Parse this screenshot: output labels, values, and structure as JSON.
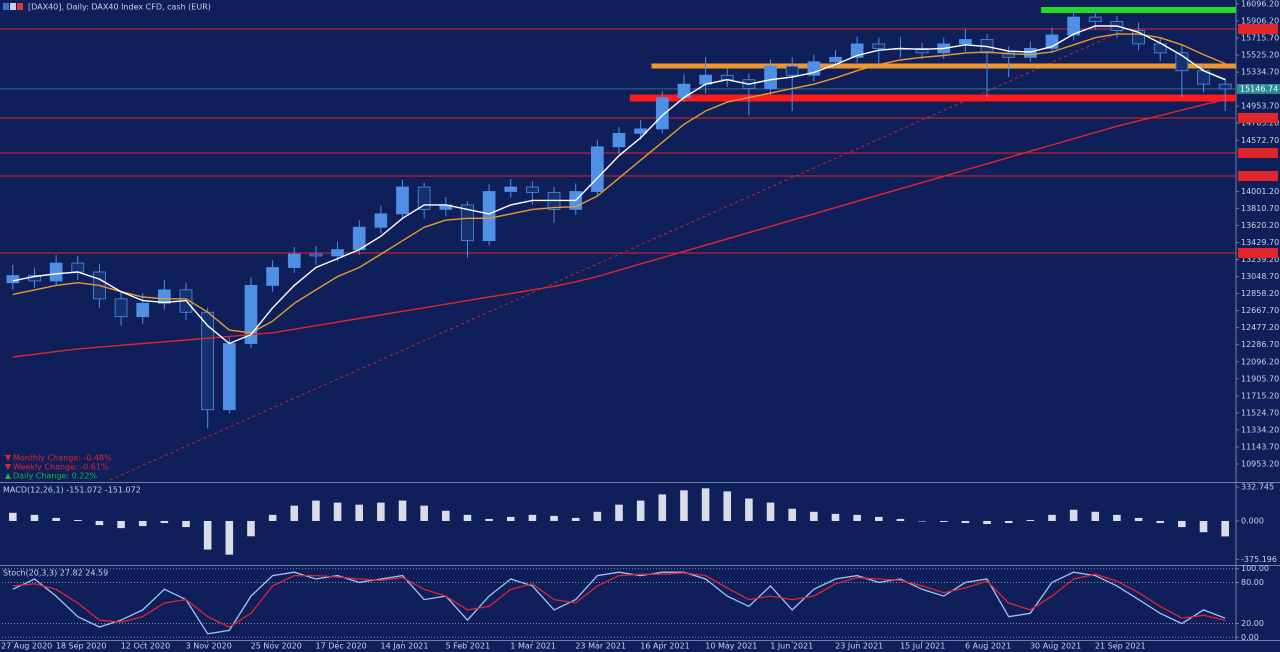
{
  "chart_data": [
    {
      "type": "candlestick",
      "title": "[DAX40], Daily: DAX40 Index CFD, cash (EUR)",
      "categories": [
        "27 Aug 2020",
        null,
        null,
        "18 Sep 2020",
        null,
        null,
        "12 Oct 2020",
        null,
        null,
        "3 Nov 2020",
        null,
        null,
        "25 Nov 2020",
        null,
        null,
        "17 Dec 2020",
        null,
        null,
        "14 Jan 2021",
        null,
        null,
        "5 Feb 2021",
        null,
        null,
        "1 Mar 2021",
        null,
        null,
        "23 Mar 2021",
        null,
        null,
        "16 Apr 2021",
        null,
        null,
        "10 May 2021",
        null,
        null,
        "1 Jun 2021",
        null,
        null,
        "23 Jun 2021",
        null,
        null,
        "15 Jul 2021",
        null,
        null,
        "6 Aug 2021",
        null,
        null,
        "30 Aug 2021",
        null,
        null,
        "21 Sep 2021",
        null,
        null,
        null,
        null,
        null
      ],
      "open": [
        12980,
        13060,
        13000,
        13200,
        13100,
        12800,
        12600,
        12750,
        12900,
        12650,
        11560,
        12300,
        12950,
        13150,
        13300,
        13280,
        13350,
        13600,
        13750,
        14050,
        13800,
        13850,
        13450,
        14000,
        14050,
        13990,
        13800,
        14000,
        14500,
        14650,
        14700,
        15050,
        15200,
        15300,
        15250,
        15150,
        15400,
        15300,
        15450,
        15500,
        15650,
        15600,
        15600,
        15550,
        15650,
        15700,
        15550,
        15500,
        15600,
        15750,
        15950,
        15900,
        15800,
        15650,
        15550,
        15350,
        15200
      ],
      "high": [
        13180,
        13150,
        13290,
        13280,
        13190,
        12880,
        12860,
        13010,
        12980,
        12700,
        12380,
        13040,
        13230,
        13380,
        13390,
        13440,
        13680,
        13840,
        14130,
        14100,
        13940,
        13890,
        14080,
        14140,
        14110,
        14050,
        14090,
        14580,
        14720,
        14800,
        15120,
        15310,
        15500,
        15380,
        15320,
        15480,
        15500,
        15530,
        15580,
        15730,
        15720,
        15730,
        15660,
        15720,
        15810,
        15760,
        15620,
        15680,
        15830,
        16030,
        16060,
        15960,
        15890,
        15720,
        15640,
        15420,
        15270
      ],
      "low": [
        12900,
        12920,
        12950,
        13010,
        12700,
        12500,
        12520,
        12680,
        12560,
        11350,
        11520,
        12250,
        12880,
        13090,
        13180,
        13220,
        13290,
        13530,
        13690,
        13700,
        13720,
        13260,
        13400,
        13930,
        13850,
        13650,
        13740,
        13960,
        14420,
        14580,
        14650,
        15000,
        15100,
        15170,
        14850,
        15080,
        14900,
        15230,
        15390,
        15440,
        15400,
        15500,
        15480,
        15480,
        15560,
        15050,
        15280,
        15450,
        15550,
        15690,
        15810,
        15720,
        15580,
        15460,
        15050,
        15110,
        14900
      ],
      "close": [
        13060,
        13000,
        13200,
        13100,
        12800,
        12600,
        12750,
        12900,
        12650,
        11560,
        12300,
        12950,
        13150,
        13300,
        13280,
        13350,
        13600,
        13750,
        14050,
        13800,
        13850,
        13450,
        14000,
        14050,
        13990,
        13800,
        14000,
        14500,
        14650,
        14700,
        15050,
        15200,
        15300,
        15250,
        15150,
        15400,
        15300,
        15450,
        15500,
        15650,
        15600,
        15600,
        15550,
        15650,
        15700,
        15550,
        15500,
        15600,
        15750,
        15950,
        15900,
        15800,
        15650,
        15550,
        15350,
        15200,
        15147
      ],
      "bull_color": "#4f8fe6",
      "bear_color": "#16306e",
      "overlays": [
        {
          "color": "#e0262b",
          "values": [
            12150,
            12180,
            12210,
            12240,
            12260,
            12280,
            12300,
            12320,
            12340,
            12360,
            12380,
            12400,
            12420,
            12460,
            12500,
            12540,
            12580,
            12620,
            12660,
            12700,
            12740,
            12780,
            12820,
            12860,
            12900,
            12940,
            12990,
            13050,
            13120,
            13190,
            13260,
            13330,
            13400,
            13470,
            13540,
            13610,
            13680,
            13750,
            13820,
            13890,
            13960,
            14030,
            14100,
            14170,
            14240,
            14310,
            14380,
            14450,
            14520,
            14590,
            14660,
            14730,
            14790,
            14850,
            14910,
            14970,
            15030
          ]
        },
        {
          "color": "#e89a2c",
          "values": [
            12850,
            12900,
            12950,
            12980,
            12950,
            12880,
            12820,
            12800,
            12800,
            12650,
            12450,
            12420,
            12550,
            12750,
            12900,
            13050,
            13150,
            13300,
            13450,
            13600,
            13680,
            13700,
            13700,
            13750,
            13800,
            13820,
            13830,
            13950,
            14150,
            14350,
            14550,
            14750,
            14900,
            15000,
            15050,
            15100,
            15150,
            15200,
            15270,
            15350,
            15420,
            15470,
            15500,
            15520,
            15550,
            15560,
            15540,
            15530,
            15560,
            15640,
            15720,
            15760,
            15760,
            15720,
            15640,
            15530,
            15430
          ]
        },
        {
          "color": "#ffffff",
          "values": [
            13000,
            13050,
            13080,
            13100,
            13020,
            12880,
            12780,
            12760,
            12780,
            12500,
            12300,
            12400,
            12700,
            12950,
            13150,
            13250,
            13350,
            13500,
            13700,
            13850,
            13850,
            13800,
            13750,
            13850,
            13900,
            13900,
            13900,
            14150,
            14400,
            14600,
            14850,
            15050,
            15200,
            15250,
            15200,
            15250,
            15280,
            15330,
            15420,
            15520,
            15580,
            15600,
            15590,
            15600,
            15640,
            15620,
            15570,
            15560,
            15620,
            15760,
            15850,
            15850,
            15780,
            15660,
            15520,
            15350,
            15250
          ]
        }
      ],
      "levels": [
        {
          "value": 15817,
          "color": "#e0262b",
          "width": 1,
          "start": 0
        },
        {
          "value": 14822,
          "color": "#e0262b",
          "width": 1,
          "start": 0
        },
        {
          "value": 14430,
          "color": "#e0262b",
          "width": 1,
          "start": 0
        },
        {
          "value": 14173,
          "color": "#e0262b",
          "width": 1,
          "start": 0
        },
        {
          "value": 13312,
          "color": "#e0262b",
          "width": 1,
          "start": 0
        },
        {
          "value": 16029,
          "color": "#22dd22",
          "width": 6,
          "start": 48
        },
        {
          "value": 15403,
          "color": "#f0962a",
          "width": 5,
          "start": 30
        },
        {
          "value": 15045,
          "color": "#ff1a1a",
          "width": 7,
          "start": 29
        }
      ],
      "last_price": 15146.74,
      "ylim": [
        10752,
        16141
      ],
      "yticks": [
        {
          "value": 16096.2,
          "label": "16096.20"
        },
        {
          "value": 15906.2,
          "label": "15906.20"
        },
        {
          "value": 15715.7,
          "label": "15715.70"
        },
        {
          "value": 15525.2,
          "label": "15525.20"
        },
        {
          "value": 15334.7,
          "label": "15334.70"
        },
        {
          "value": 14953.7,
          "label": "14953.70"
        },
        {
          "value": 14763.2,
          "label": "14763.20"
        },
        {
          "value": 14572.7,
          "label": "14572.70"
        },
        {
          "value": 14001.2,
          "label": "14001.20"
        },
        {
          "value": 13810.7,
          "label": "13810.70"
        },
        {
          "value": 13620.2,
          "label": "13620.20"
        },
        {
          "value": 13429.7,
          "label": "13429.70"
        },
        {
          "value": 13239.2,
          "label": "13239.20"
        },
        {
          "value": 13048.7,
          "label": "13048.70"
        },
        {
          "value": 12858.2,
          "label": "12858.20"
        },
        {
          "value": 12667.7,
          "label": "12667.70"
        },
        {
          "value": 12477.2,
          "label": "12477.20"
        },
        {
          "value": 12286.7,
          "label": "12286.70"
        },
        {
          "value": 12096.2,
          "label": "12096.20"
        },
        {
          "value": 11905.7,
          "label": "11905.70"
        },
        {
          "value": 11715.2,
          "label": "11715.20"
        },
        {
          "value": 11524.7,
          "label": "11524.70"
        },
        {
          "value": 11334.2,
          "label": "11334.20"
        },
        {
          "value": 11143.7,
          "label": "11143.70"
        },
        {
          "value": 10953.2,
          "label": "10953.20"
        }
      ],
      "annotations": [
        {
          "text": "Monthly Change: -0.48%",
          "color": "#e0262b",
          "direction": "down"
        },
        {
          "text": "Weekly Change: -0.61%",
          "color": "#e0262b",
          "direction": "down"
        },
        {
          "text": "Daily Change: 0.22%",
          "color": "#1fae3a",
          "direction": "up"
        }
      ]
    },
    {
      "type": "bar",
      "title": "MACD(12,26,1) -151.072 -151.072",
      "color": "#d8dce8",
      "values": [
        80,
        60,
        30,
        10,
        -40,
        -70,
        -50,
        -20,
        -60,
        -280,
        -330,
        -150,
        60,
        150,
        200,
        180,
        160,
        180,
        200,
        150,
        100,
        60,
        20,
        40,
        60,
        50,
        30,
        90,
        160,
        200,
        260,
        300,
        320,
        290,
        220,
        180,
        120,
        90,
        70,
        60,
        40,
        20,
        0,
        -10,
        -20,
        -30,
        -20,
        10,
        60,
        110,
        90,
        60,
        30,
        -20,
        -60,
        -110,
        -151.072
      ],
      "ylim": [
        -431,
        372
      ],
      "yticks": [
        332.745,
        {
          "value": 0,
          "label": "0.000"
        },
        -375.196
      ]
    },
    {
      "type": "line",
      "title": "Stoch(20,3,3) 27.82 24.59",
      "series": [
        {
          "color": "#9cc4f5",
          "values": [
            70,
            85,
            60,
            30,
            15,
            25,
            40,
            70,
            55,
            5,
            10,
            60,
            90,
            95,
            85,
            90,
            80,
            85,
            90,
            55,
            60,
            25,
            60,
            85,
            75,
            40,
            55,
            90,
            95,
            90,
            95,
            95,
            85,
            60,
            45,
            75,
            40,
            70,
            85,
            90,
            80,
            85,
            70,
            60,
            80,
            85,
            30,
            35,
            80,
            95,
            90,
            75,
            55,
            35,
            20,
            40,
            27.82
          ]
        },
        {
          "color": "#e0262b",
          "values": [
            75,
            78,
            70,
            50,
            25,
            22,
            30,
            50,
            55,
            30,
            15,
            35,
            75,
            90,
            90,
            88,
            85,
            83,
            87,
            70,
            60,
            40,
            45,
            70,
            78,
            55,
            50,
            75,
            90,
            92,
            92,
            94,
            90,
            72,
            55,
            60,
            55,
            60,
            78,
            87,
            85,
            83,
            75,
            65,
            72,
            82,
            50,
            40,
            60,
            85,
            92,
            82,
            65,
            45,
            28,
            32,
            24.59
          ]
        }
      ],
      "ylim": [
        -4,
        104
      ],
      "yticks": [
        {
          "value": 100,
          "label": "100.00"
        },
        {
          "value": 80,
          "label": "80.00"
        },
        {
          "value": 20,
          "label": "20.00"
        },
        {
          "value": 0,
          "label": "0.00"
        }
      ],
      "grid": true
    }
  ]
}
